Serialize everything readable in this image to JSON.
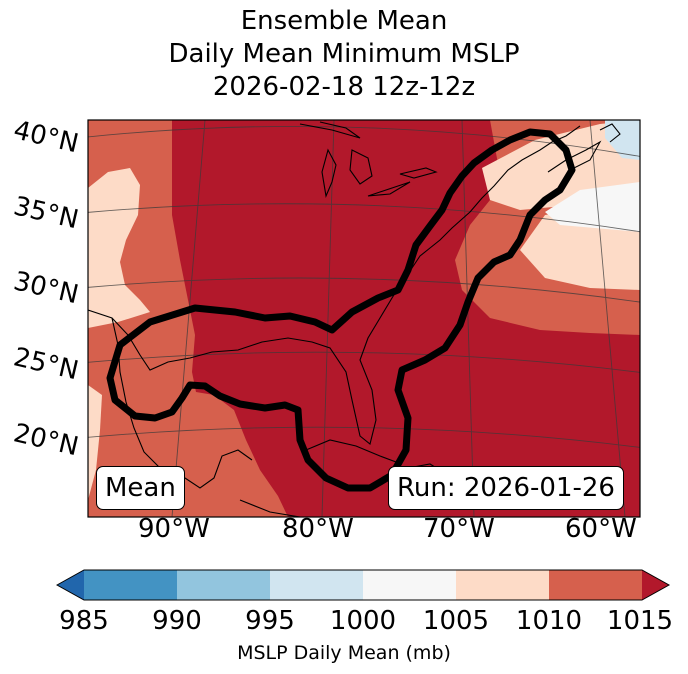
{
  "title": {
    "line1": "Ensemble Mean",
    "line2": "Daily Mean Minimum MSLP",
    "line3": "2026-02-18 12z-12z"
  },
  "map": {
    "lat_labels": [
      "40°N",
      "35°N",
      "30°N",
      "25°N",
      "20°N"
    ],
    "lon_labels": [
      "90°W",
      "80°W",
      "70°W",
      "60°W"
    ],
    "annotation_left": "Mean",
    "annotation_right": "Run: 2026-01-26",
    "field_colors": {
      "c1005": "#fddbc7",
      "c1010": "#d6604d",
      "c1015": "#b2182b",
      "c995": "#d1e5f0",
      "c1000": "#f7f7f7"
    },
    "contour_color": "#000000"
  },
  "colorbar": {
    "ticks": [
      "985",
      "990",
      "995",
      "1000",
      "1005",
      "1010",
      "1015"
    ],
    "colors": [
      "#2166ac",
      "#4393c3",
      "#92c5de",
      "#d1e5f0",
      "#f7f7f7",
      "#fddbc7",
      "#d6604d",
      "#b2182b"
    ],
    "label": "MSLP Daily Mean (mb)"
  }
}
